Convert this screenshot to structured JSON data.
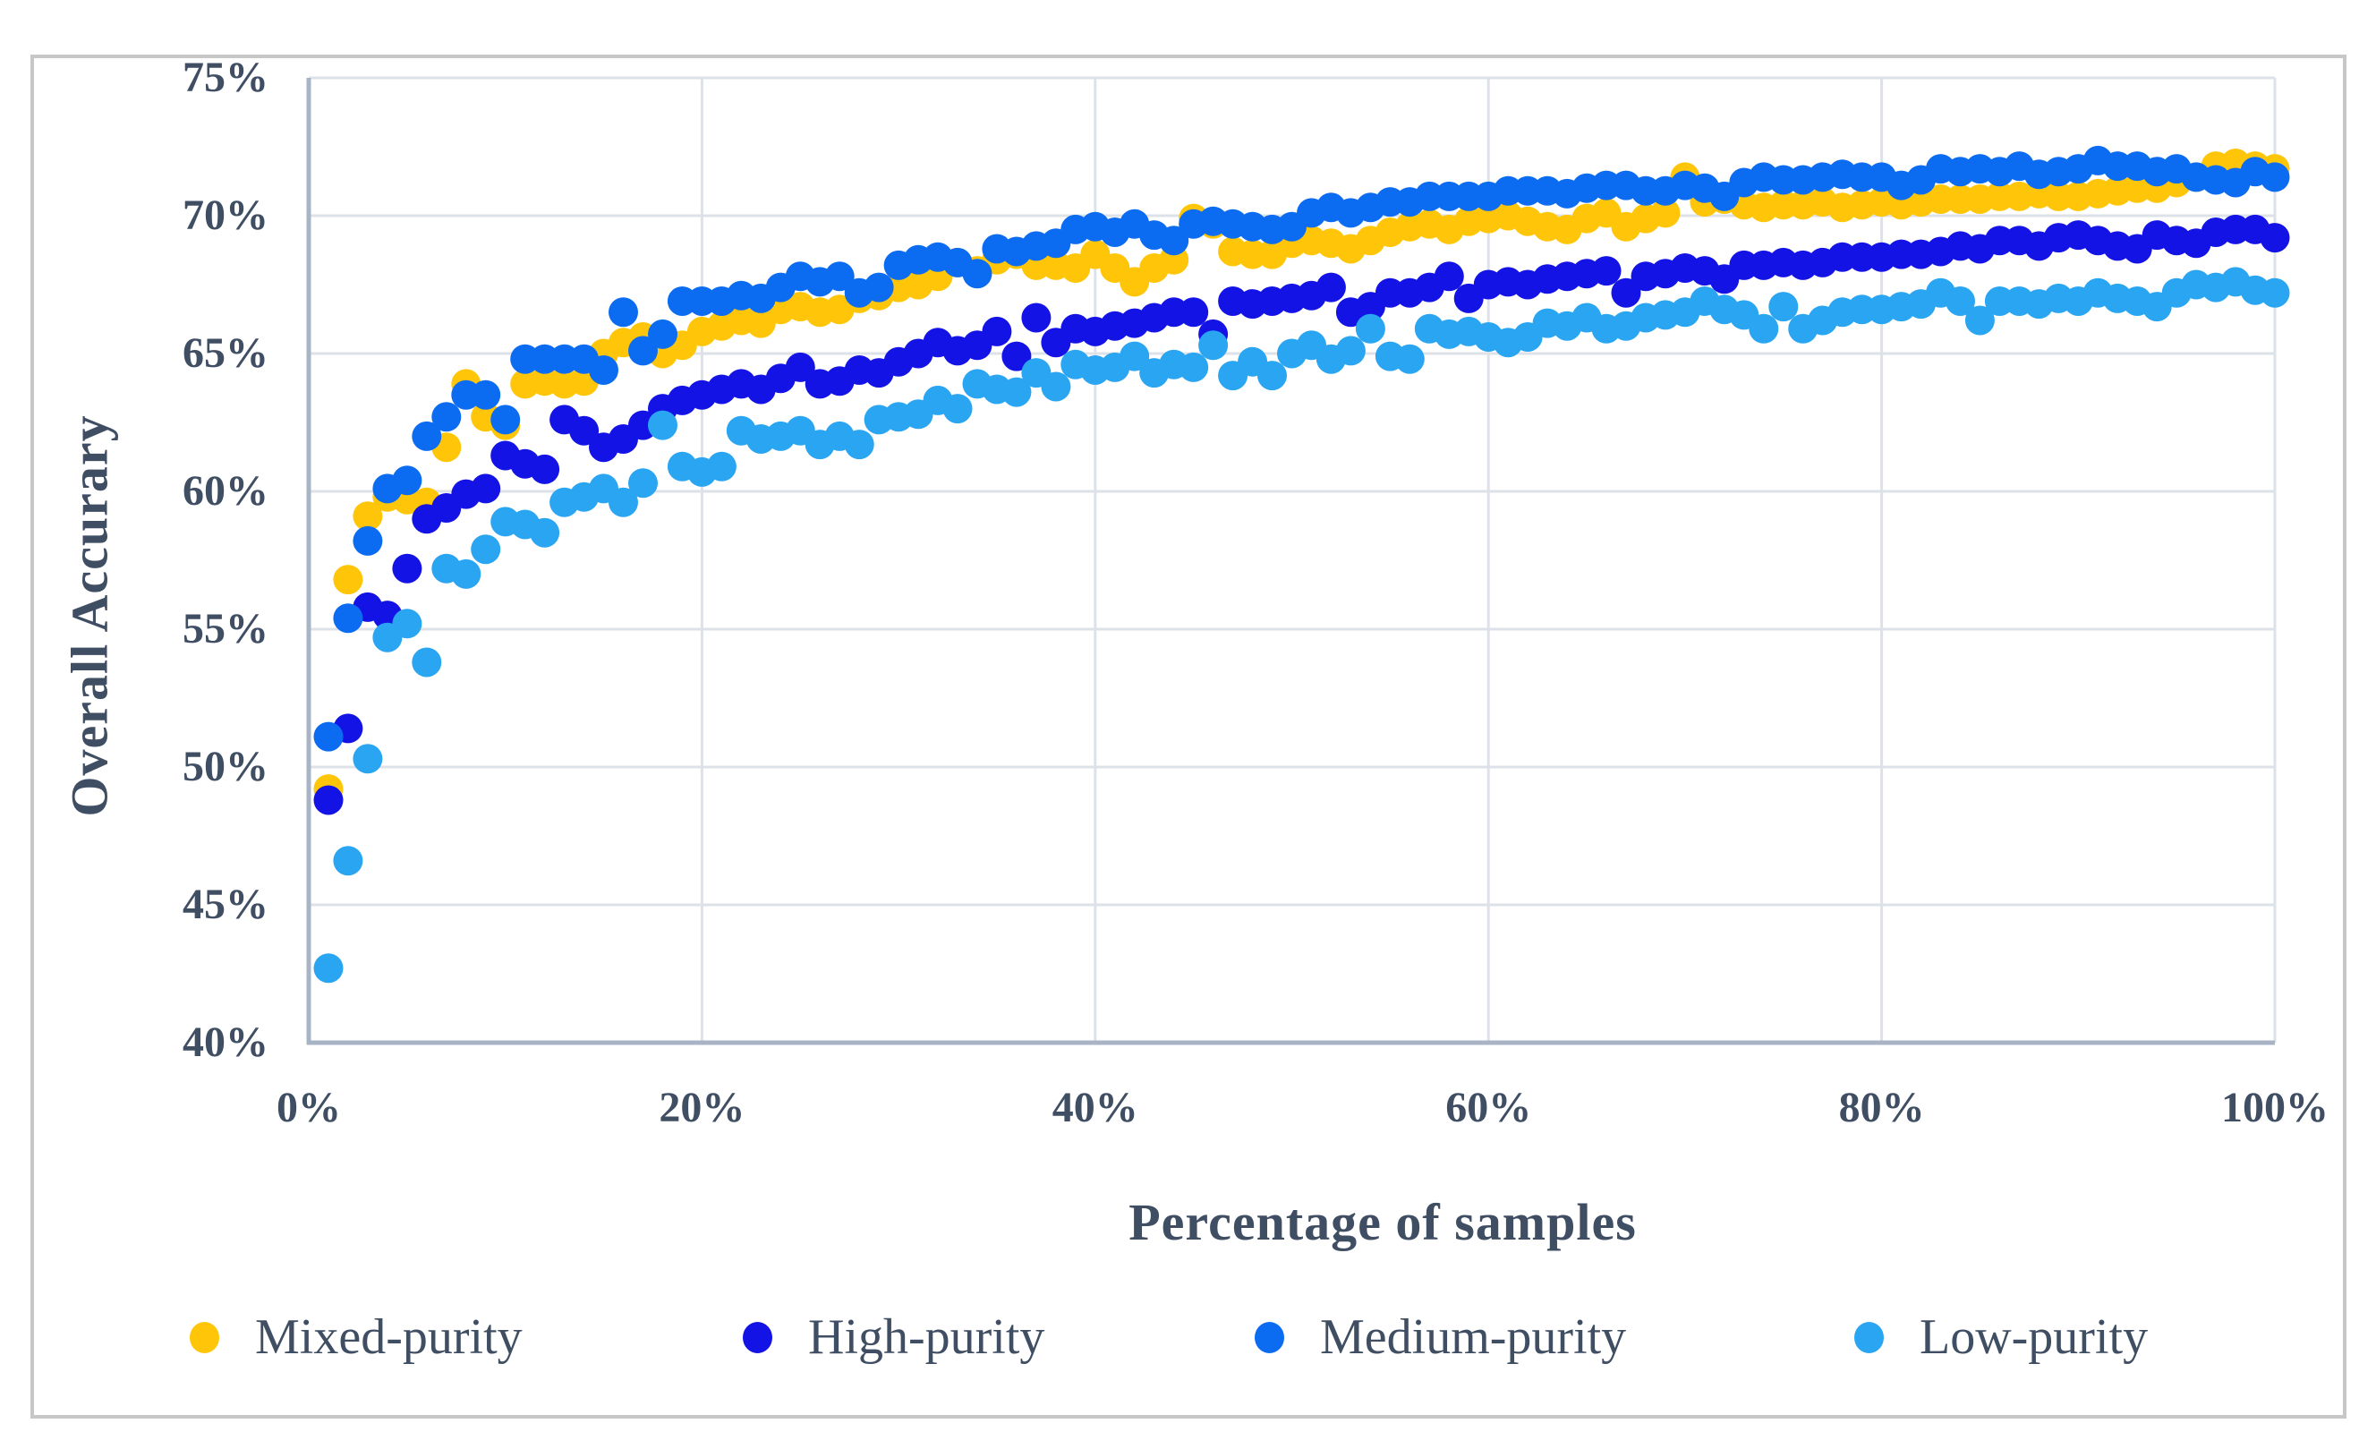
{
  "chart_data": {
    "type": "scatter",
    "title": "",
    "xlabel": "Percentage of samples",
    "ylabel": "Overall Accurary",
    "xlim": [
      0,
      100
    ],
    "ylim": [
      40,
      75
    ],
    "grid": true,
    "legend_position": "bottom",
    "marker": "circle",
    "x_ticks": [
      "0%",
      "20%",
      "40%",
      "60%",
      "80%",
      "100%"
    ],
    "x_tick_values": [
      0,
      20,
      40,
      60,
      80,
      100
    ],
    "y_ticks": [
      "75%",
      "70%",
      "65%",
      "60%",
      "55%",
      "50%",
      "45%",
      "40%"
    ],
    "y_tick_values": [
      75,
      70,
      65,
      60,
      55,
      50,
      45,
      40
    ],
    "x": [
      1,
      2,
      3,
      4,
      5,
      6,
      7,
      8,
      9,
      10,
      11,
      12,
      13,
      14,
      15,
      16,
      17,
      18,
      19,
      20,
      21,
      22,
      23,
      24,
      25,
      26,
      27,
      28,
      29,
      30,
      31,
      32,
      33,
      34,
      35,
      36,
      37,
      38,
      39,
      40,
      41,
      42,
      43,
      44,
      45,
      46,
      47,
      48,
      49,
      50,
      51,
      52,
      53,
      54,
      55,
      56,
      57,
      58,
      59,
      60,
      61,
      62,
      63,
      64,
      65,
      66,
      67,
      68,
      69,
      70,
      71,
      72,
      73,
      74,
      75,
      76,
      77,
      78,
      79,
      80,
      81,
      82,
      83,
      84,
      85,
      86,
      87,
      88,
      89,
      90,
      91,
      92,
      93,
      94,
      95,
      96,
      97,
      98,
      99,
      100
    ],
    "series": [
      {
        "name": "Mixed-purity",
        "color": "#FFC609",
        "values": [
          49.2,
          56.8,
          59.1,
          59.8,
          59.7,
          59.6,
          61.6,
          63.9,
          62.7,
          62.4,
          63.9,
          64.0,
          63.9,
          64.0,
          65.0,
          65.4,
          65.6,
          65.0,
          65.3,
          65.8,
          66.0,
          66.2,
          66.1,
          66.6,
          66.7,
          66.5,
          66.6,
          67.0,
          67.1,
          67.4,
          67.5,
          67.8,
          68.3,
          68.0,
          68.4,
          68.6,
          68.2,
          68.2,
          68.1,
          68.6,
          68.1,
          67.6,
          68.1,
          68.4,
          69.9,
          69.7,
          68.7,
          68.6,
          68.6,
          69.0,
          69.1,
          69.0,
          68.8,
          69.1,
          69.4,
          69.6,
          69.7,
          69.5,
          69.8,
          69.9,
          70.0,
          69.8,
          69.6,
          69.5,
          69.9,
          70.1,
          69.6,
          69.9,
          70.1,
          71.4,
          70.5,
          70.6,
          70.4,
          70.3,
          70.4,
          70.4,
          70.5,
          70.3,
          70.4,
          70.5,
          70.4,
          70.5,
          70.6,
          70.6,
          70.6,
          70.7,
          70.7,
          70.8,
          70.7,
          70.7,
          70.8,
          70.9,
          71.0,
          71.0,
          71.2,
          71.4,
          71.8,
          71.9,
          71.8,
          71.7
        ]
      },
      {
        "name": "High-purity",
        "color": "#1413E6",
        "values": [
          48.8,
          51.4,
          55.8,
          55.5,
          57.2,
          59.0,
          59.4,
          59.9,
          60.1,
          61.3,
          61.0,
          60.8,
          62.6,
          62.2,
          61.6,
          61.9,
          62.4,
          63.0,
          63.3,
          63.5,
          63.7,
          63.9,
          63.7,
          64.1,
          64.5,
          63.9,
          64.0,
          64.4,
          64.3,
          64.7,
          65.0,
          65.4,
          65.1,
          65.3,
          65.8,
          64.9,
          66.3,
          65.4,
          65.9,
          65.8,
          66.0,
          66.1,
          66.3,
          66.5,
          66.5,
          65.7,
          66.9,
          66.8,
          66.9,
          67.0,
          67.1,
          67.4,
          66.5,
          66.7,
          67.2,
          67.2,
          67.4,
          67.8,
          67.0,
          67.5,
          67.6,
          67.5,
          67.7,
          67.8,
          67.9,
          68.0,
          67.2,
          67.8,
          67.9,
          68.1,
          68.0,
          67.7,
          68.2,
          68.2,
          68.3,
          68.2,
          68.3,
          68.5,
          68.5,
          68.5,
          68.6,
          68.6,
          68.7,
          68.9,
          68.8,
          69.1,
          69.1,
          68.9,
          69.2,
          69.3,
          69.1,
          68.9,
          68.8,
          69.3,
          69.1,
          69.0,
          69.4,
          69.5,
          69.5,
          69.2
        ]
      },
      {
        "name": "Medium-purity",
        "color": "#0B6CF2",
        "values": [
          51.1,
          55.4,
          58.2,
          60.1,
          60.4,
          62.0,
          62.7,
          63.5,
          63.5,
          62.6,
          64.8,
          64.8,
          64.8,
          64.8,
          64.4,
          66.5,
          65.1,
          65.7,
          66.9,
          66.9,
          66.9,
          67.1,
          67.0,
          67.4,
          67.8,
          67.6,
          67.8,
          67.2,
          67.4,
          68.2,
          68.4,
          68.5,
          68.3,
          67.9,
          68.8,
          68.7,
          68.9,
          69.0,
          69.5,
          69.6,
          69.4,
          69.7,
          69.3,
          69.1,
          69.7,
          69.8,
          69.7,
          69.6,
          69.5,
          69.6,
          70.1,
          70.3,
          70.1,
          70.3,
          70.5,
          70.5,
          70.7,
          70.7,
          70.7,
          70.7,
          70.9,
          70.9,
          70.9,
          70.8,
          71.0,
          71.1,
          71.1,
          70.9,
          70.9,
          71.1,
          71.0,
          70.7,
          71.2,
          71.4,
          71.3,
          71.3,
          71.4,
          71.5,
          71.4,
          71.4,
          71.1,
          71.3,
          71.7,
          71.6,
          71.7,
          71.6,
          71.8,
          71.5,
          71.6,
          71.7,
          72.0,
          71.8,
          71.8,
          71.6,
          71.7,
          71.4,
          71.3,
          71.2,
          71.6,
          71.4
        ]
      },
      {
        "name": "Low-purity",
        "color": "#2AA5F2",
        "values": [
          42.7,
          46.6,
          50.3,
          54.7,
          55.2,
          53.8,
          57.2,
          57.0,
          57.9,
          58.9,
          58.8,
          58.5,
          59.6,
          59.8,
          60.1,
          59.6,
          60.3,
          62.4,
          60.9,
          60.7,
          60.9,
          62.2,
          61.9,
          62.0,
          62.2,
          61.7,
          62.0,
          61.7,
          62.6,
          62.7,
          62.8,
          63.3,
          63.0,
          63.9,
          63.7,
          63.6,
          64.3,
          63.8,
          64.6,
          64.4,
          64.5,
          64.9,
          64.3,
          64.6,
          64.5,
          65.3,
          64.2,
          64.7,
          64.2,
          65.0,
          65.3,
          64.8,
          65.1,
          65.9,
          64.9,
          64.8,
          65.9,
          65.7,
          65.8,
          65.6,
          65.4,
          65.6,
          66.1,
          66.0,
          66.3,
          65.9,
          66.0,
          66.3,
          66.4,
          66.5,
          66.9,
          66.6,
          66.4,
          65.9,
          66.7,
          65.9,
          66.2,
          66.5,
          66.6,
          66.6,
          66.7,
          66.8,
          67.2,
          66.9,
          66.2,
          66.9,
          66.9,
          66.8,
          67.0,
          66.9,
          67.2,
          67.0,
          66.9,
          66.7,
          67.2,
          67.5,
          67.4,
          67.6,
          67.3,
          67.2
        ]
      }
    ],
    "colors": {
      "text": "#3F4E63",
      "gridline": "#DDE2E9",
      "axis_line": "#A8B4C5",
      "chart_border": "#C7C7C7",
      "background": "#FFFFFF"
    }
  }
}
